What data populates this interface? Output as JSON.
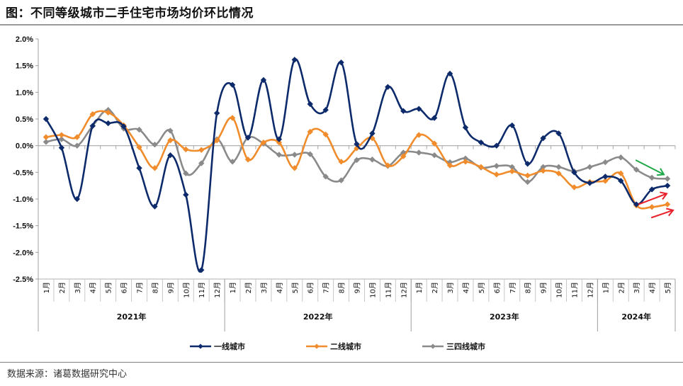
{
  "title": "图：不同等级城市二手住宅市场均价环比情况",
  "source": "数据来源：诸葛数据研究中心",
  "chart_data": {
    "type": "line",
    "title": "不同等级城市二手住宅市场均价环比情况",
    "xlabel": "",
    "ylabel": "",
    "ylim": [
      -2.5,
      2.0
    ],
    "y_ticks": [
      2.0,
      1.5,
      1.0,
      0.5,
      0.0,
      -0.5,
      -1.0,
      -1.5,
      -2.0,
      -2.5
    ],
    "y_tick_labels": [
      "2.0%",
      "1.5%",
      "1.0%",
      "0.5%",
      "0.0%",
      "-0.5%",
      "-1.0%",
      "-1.5%",
      "-2.0%",
      "-2.5%"
    ],
    "x": [
      "1月",
      "2月",
      "3月",
      "4月",
      "5月",
      "6月",
      "7月",
      "8月",
      "9月",
      "10月",
      "11月",
      "12月",
      "1月",
      "2月",
      "3月",
      "4月",
      "5月",
      "6月",
      "7月",
      "8月",
      "9月",
      "10月",
      "11月",
      "12月",
      "1月",
      "2月",
      "3月",
      "4月",
      "5月",
      "6月",
      "7月",
      "8月",
      "9月",
      "10月",
      "11月",
      "12月",
      "1月",
      "2月",
      "3月",
      "4月",
      "5月"
    ],
    "year_groups": [
      {
        "label": "2021年",
        "count": 12
      },
      {
        "label": "2022年",
        "count": 12
      },
      {
        "label": "2023年",
        "count": 12
      },
      {
        "label": "2024年",
        "count": 5
      }
    ],
    "grid": false,
    "legend_position": "bottom",
    "series": [
      {
        "name": "一线城市",
        "color": "#0d2a6b",
        "values": [
          0.5,
          -0.04,
          -1.0,
          0.37,
          0.42,
          0.36,
          -0.42,
          -1.14,
          -0.18,
          -0.92,
          -2.33,
          0.61,
          1.14,
          0.15,
          1.23,
          0.12,
          1.61,
          0.78,
          0.67,
          1.56,
          0.03,
          0.23,
          1.1,
          0.65,
          0.69,
          0.52,
          1.35,
          0.34,
          0.06,
          0.0,
          0.38,
          -0.34,
          0.14,
          0.23,
          -0.5,
          -0.7,
          -0.58,
          -0.66,
          -1.1,
          -0.82,
          -0.75
        ]
      },
      {
        "name": "二线城市",
        "color": "#f08c2b",
        "values": [
          0.16,
          0.2,
          0.16,
          0.59,
          0.62,
          0.38,
          -0.03,
          -0.42,
          0.1,
          -0.07,
          -0.08,
          0.1,
          0.52,
          -0.26,
          0.06,
          0.06,
          -0.42,
          0.26,
          0.21,
          -0.3,
          -0.05,
          0.14,
          -0.37,
          -0.2,
          0.2,
          0.04,
          -0.37,
          -0.3,
          -0.4,
          -0.54,
          -0.48,
          -0.56,
          -0.47,
          -0.52,
          -0.78,
          -0.68,
          -0.66,
          -0.52,
          -1.12,
          -1.15,
          -1.1
        ]
      },
      {
        "name": "三四线城市",
        "color": "#8a8a8a",
        "values": [
          0.07,
          0.12,
          0.0,
          0.37,
          0.67,
          0.32,
          0.3,
          0.02,
          0.28,
          -0.52,
          -0.33,
          0.12,
          -0.3,
          0.15,
          0.04,
          -0.17,
          -0.17,
          -0.16,
          -0.58,
          -0.65,
          -0.27,
          -0.26,
          -0.38,
          -0.13,
          -0.13,
          -0.18,
          -0.31,
          -0.24,
          -0.41,
          -0.38,
          -0.4,
          -0.68,
          -0.4,
          -0.4,
          -0.48,
          -0.4,
          -0.31,
          -0.22,
          -0.45,
          -0.6,
          -0.62
        ]
      }
    ],
    "annotations": [
      {
        "type": "arrow",
        "color": "#1fa847",
        "direction": "down-right",
        "target_series": "三四线城市",
        "from_index": 38,
        "to_index": 40
      },
      {
        "type": "arrow",
        "color": "#e8202a",
        "direction": "up-right",
        "target_series": "一线城市",
        "from_index": 38,
        "to_index": 40
      },
      {
        "type": "arrow",
        "color": "#e8202a",
        "direction": "up-right",
        "target_series": "二线城市",
        "from_index": 38,
        "to_index": 40
      }
    ]
  }
}
